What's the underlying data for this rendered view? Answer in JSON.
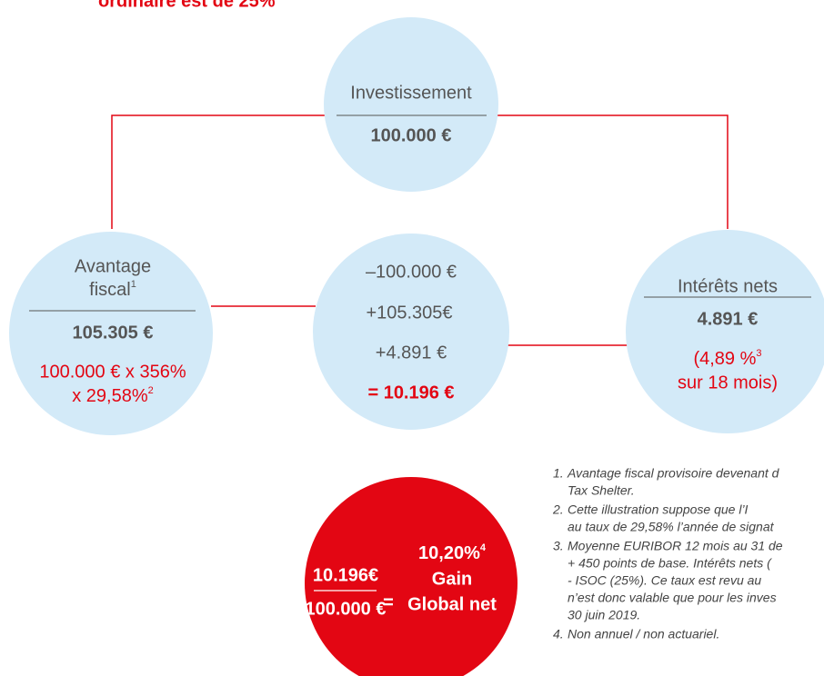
{
  "header_fragment": "ordinaire est de 25%",
  "nodes": [
    {
      "label": [
        "Investissement"
      ],
      "amount": "100.000 €"
    },
    {
      "label": [
        "Avantage",
        "fiscal"
      ],
      "label_ref": "1",
      "amount": "105.305 €",
      "detail": [
        "100.000 € x 356%",
        "x 29,58%"
      ],
      "detail_ref": "2"
    },
    {
      "lines": [
        "–100.000 €",
        "+105.305€",
        "+4.891 €"
      ],
      "total": "= 10.196 €"
    },
    {
      "label": [
        "Intérêts nets"
      ],
      "amount": "4.891 €",
      "detail": [
        "(4,89 %",
        "sur 18 mois)"
      ],
      "detail_ref": "3"
    }
  ],
  "result": {
    "numerator": "10.196€",
    "denominator": "100.000 €",
    "equals": "=",
    "rate": "10,20%",
    "rate_ref": "4",
    "label": [
      "Gain",
      "Global net"
    ]
  },
  "footnotes": [
    {
      "number": "1.",
      "lines": [
        "Avantage fiscal provisoire devenant d",
        "Tax Shelter."
      ]
    },
    {
      "number": "2.",
      "lines": [
        "Cette illustration suppose que l’I",
        "au taux de 29,58% l’année de signat"
      ]
    },
    {
      "number": "3.",
      "lines": [
        "Moyenne EURIBOR 12 mois au 31 de",
        "+ 450 points de base. Intérêts nets (",
        "- ISOC (25%). Ce taux est revu au",
        "n’est donc valable que pour les inves",
        "30 juin 2019."
      ]
    },
    {
      "number": "4.",
      "lines": [
        "Non annuel / non actuariel."
      ]
    }
  ]
}
